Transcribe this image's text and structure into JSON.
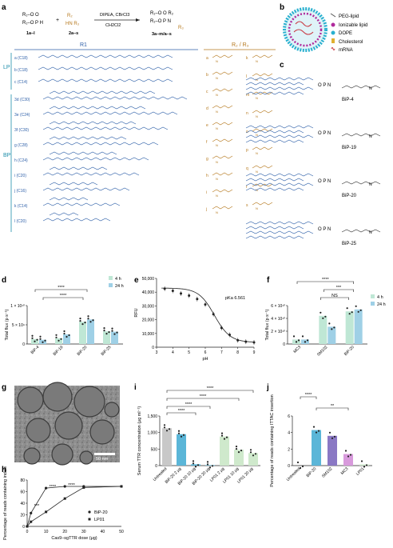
{
  "panel_letters": [
    "a",
    "b",
    "c",
    "d",
    "e",
    "f",
    "g",
    "h",
    "i",
    "j"
  ],
  "scheme": {
    "reactant1": "1a–l",
    "reactant2": "2a–s",
    "reagents": "DIPEA, CBrCl3",
    "solvent": "CH2Cl2",
    "product": "3a–m/a–s",
    "r1_header": "R1",
    "r2_header": "R2",
    "r3_header": "R3",
    "lp_label": "LP",
    "bp_label": "BP",
    "lp_tails": [
      "a (C18)",
      "b (C18)",
      "c (C14)"
    ],
    "bp_tails": [
      "3d (C30)",
      "3e (C24)",
      "3f (C30)",
      "g (C28)",
      "h (C24)",
      "i (C20)",
      "j (C16)",
      "k (C14)",
      "l (C20)"
    ],
    "amines_left": [
      "a",
      "b",
      "c",
      "d",
      "e",
      "f",
      "g",
      "h",
      "i",
      "j"
    ],
    "amines_right": [
      "k",
      "l",
      "m",
      "n",
      "o",
      "p",
      "q",
      "r",
      "s"
    ]
  },
  "lnp_legend": [
    "PEG-lipid",
    "Ionizable lipid",
    "DOPE",
    "Cholesterol",
    "mRNA"
  ],
  "bip_names": [
    "BiP-4",
    "BiP-19",
    "BiP-20",
    "BiP-25"
  ],
  "colors": {
    "h4": "#bfe7d5",
    "h24": "#9fd0e6",
    "untreated": "#c8c8c8",
    "bip20": "#5bb6d8",
    "sm102": "#8a78c4",
    "mc3": "#d89adc",
    "lp01": "#cfe9cc"
  },
  "chart_data": [
    {
      "panel": "d",
      "type": "bar",
      "ylabel": "Total flux (p s⁻¹)",
      "yticks": [
        "0",
        "5 × 10⁹",
        "1 × 10¹⁰"
      ],
      "ylim": [
        0,
        10000000000
      ],
      "categories": [
        "BiP-4",
        "BiP-19",
        "BiP-20",
        "BiP-25"
      ],
      "series": [
        {
          "name": "4 h",
          "values": [
            1300000000,
            1500000000,
            5800000000,
            3300000000
          ]
        },
        {
          "name": "24 h",
          "values": [
            1100000000,
            2500000000,
            6400000000,
            3200000000
          ]
        }
      ],
      "significance": [
        "****",
        "****"
      ]
    },
    {
      "panel": "e",
      "type": "scatter",
      "xlabel": "pH",
      "ylabel": "RFU",
      "annotation": "pKa 6.561",
      "xlim": [
        3,
        9
      ],
      "ylim": [
        0,
        50000
      ],
      "yticks": [
        "0",
        "10,000",
        "20,000",
        "30,000",
        "40,000",
        "50,000"
      ],
      "xticks": [
        "3",
        "4",
        "5",
        "6",
        "7",
        "8",
        "9"
      ],
      "x": [
        3.5,
        4,
        4.5,
        5,
        5.5,
        6,
        6.5,
        7,
        7.5,
        8,
        8.5,
        9
      ],
      "y": [
        42500,
        41000,
        39000,
        37500,
        35000,
        31000,
        24000,
        14000,
        9000,
        5000,
        4000,
        3500
      ]
    },
    {
      "panel": "f",
      "type": "bar",
      "ylabel": "Total flux (p s⁻¹)",
      "yticks": [
        "0",
        "2 × 10¹⁰",
        "4 × 10¹⁰",
        "6 × 10¹⁰"
      ],
      "ylim": [
        0,
        60000000000
      ],
      "categories": [
        "MC3",
        "SM102",
        "BiP-20"
      ],
      "series": [
        {
          "name": "4 h",
          "values": [
            7000000000,
            44000000000,
            51000000000
          ]
        },
        {
          "name": "24 h",
          "values": [
            7000000000,
            27000000000,
            54000000000
          ]
        }
      ],
      "significance": [
        "****",
        "***",
        "NS"
      ]
    },
    {
      "panel": "h",
      "type": "line",
      "xlabel": "Cas9–sgTTR dose (μg)",
      "ylabel": "Percentage of reads containing indels",
      "xlim": [
        0,
        50
      ],
      "ylim": [
        0,
        80
      ],
      "xticks": [
        "0",
        "10",
        "20",
        "30",
        "40",
        "50"
      ],
      "yticks": [
        "0",
        "20",
        "40",
        "60",
        "80"
      ],
      "x": [
        0,
        2,
        10,
        20,
        30,
        50
      ],
      "series": [
        {
          "name": "BiP-20",
          "values": [
            0,
            23,
            66,
            69,
            69,
            69
          ]
        },
        {
          "name": "LP01",
          "values": [
            0,
            8,
            25,
            48,
            67,
            69
          ]
        }
      ],
      "significance": [
        "***",
        "****",
        "****"
      ]
    },
    {
      "panel": "i",
      "type": "bar",
      "ylabel": "Serum TTR concentration (μg ml⁻¹)",
      "ylim": [
        0,
        1500
      ],
      "yticks": [
        "0",
        "500",
        "1,000",
        "1,500"
      ],
      "categories": [
        "Untreated",
        "BiP-20 2 μg",
        "BiP-20 10 μg",
        "BiP-20 20 μg",
        "LP01 2 μg",
        "LP01 10 μg",
        "LP01 20 μg"
      ],
      "values": [
        1130,
        950,
        40,
        15,
        880,
        480,
        380
      ],
      "significance": [
        "****",
        "****",
        "****",
        "****"
      ]
    },
    {
      "panel": "j",
      "type": "bar",
      "ylabel": "Percentage of reads containing ITTAC insertion",
      "ylim": [
        0,
        6
      ],
      "yticks": [
        "0",
        "2",
        "4",
        "6"
      ],
      "categories": [
        "Untreated",
        "BiP-20",
        "SM102",
        "MC3",
        "LP01"
      ],
      "values": [
        0,
        4.3,
        3.6,
        1.4,
        0.15
      ],
      "significance": [
        "****",
        "**"
      ]
    }
  ],
  "micrograph": {
    "scale_bar": "50 nm"
  }
}
